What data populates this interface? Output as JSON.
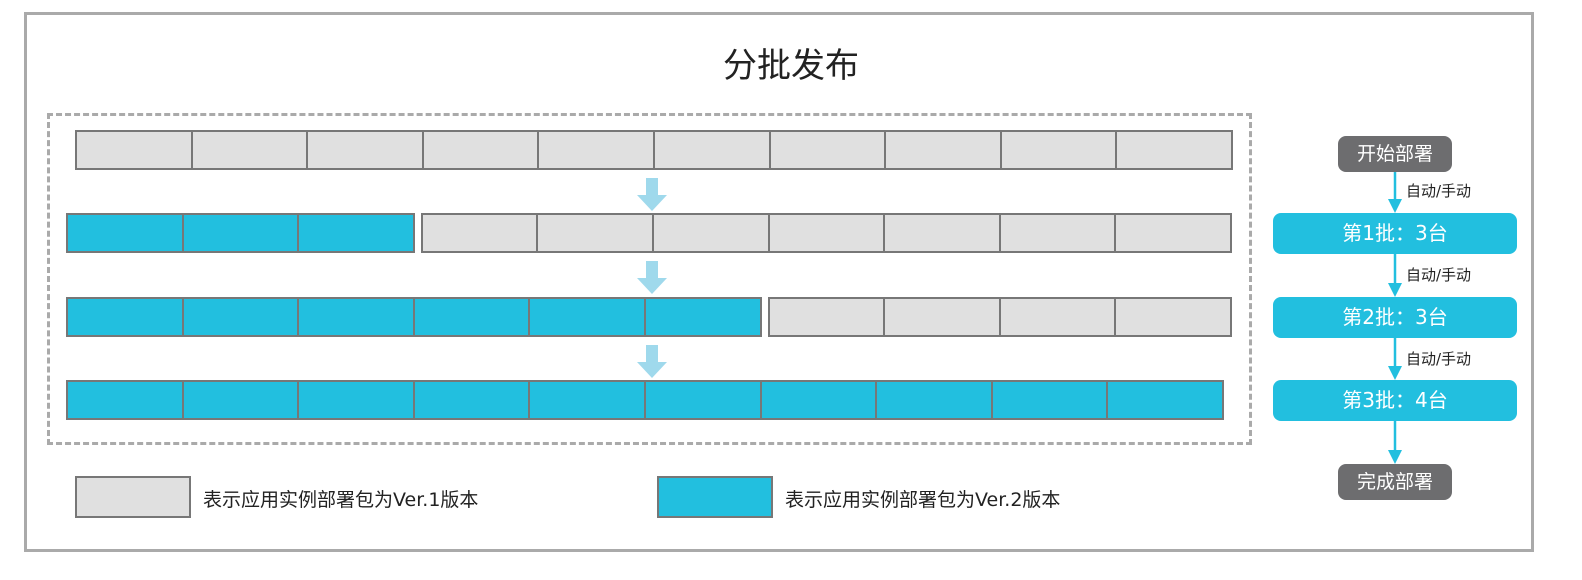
{
  "title": "分批发布",
  "colors": {
    "old": "#e0e0e0",
    "new": "#22bfdf",
    "pill": "#6d6d6f",
    "arrow": "#9fd9ec"
  },
  "rows": [
    {
      "new": 0,
      "old": 10
    },
    {
      "new": 3,
      "old": 7
    },
    {
      "new": 6,
      "old": 4
    },
    {
      "new": 10,
      "old": 0
    }
  ],
  "legend": {
    "old_label": "表示应用实例部署包为Ver.1版本",
    "new_label": "表示应用实例部署包为Ver.2版本"
  },
  "flow": {
    "start": "开始部署",
    "transition": "自动/手动",
    "batches": [
      "第1批：3台",
      "第2批：3台",
      "第3批：4台"
    ],
    "end": "完成部署"
  }
}
